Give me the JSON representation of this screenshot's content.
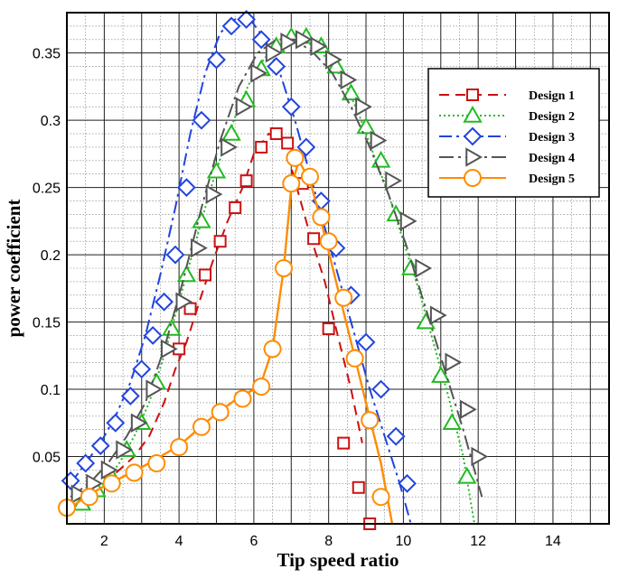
{
  "chart_data": {
    "type": "line",
    "title": "",
    "xlabel": "Tip speed ratio",
    "ylabel": "power coefficient",
    "xlim": [
      1,
      15.5
    ],
    "ylim": [
      0,
      0.38
    ],
    "grid": true,
    "legend_position": "top-right",
    "x_ticks": [
      2,
      4,
      6,
      8,
      10,
      12,
      14
    ],
    "y_ticks": [
      0.05,
      0.1,
      0.15,
      0.2,
      0.25,
      0.3,
      0.35
    ],
    "x_tick_labels": [
      "2",
      "4",
      "6",
      "8",
      "10",
      "12",
      "14"
    ],
    "y_tick_labels": [
      "0.05",
      "0.1",
      "0.15",
      "0.2",
      "0.25",
      "0.3",
      "0.35"
    ],
    "series": [
      {
        "name": "Design 1",
        "color": "#cc1111",
        "dash": "11,7",
        "marker": "square",
        "x": [
          1.2,
          1.6,
          2.0,
          2.4,
          2.8,
          3.2,
          3.6,
          3.9,
          4.2,
          4.6,
          4.9,
          5.3,
          5.7,
          6.0,
          6.4,
          6.8,
          7.1,
          7.5,
          7.9,
          8.2,
          8.6,
          8.9
        ],
        "y": [
          0.02,
          0.025,
          0.03,
          0.04,
          0.05,
          0.065,
          0.09,
          0.115,
          0.135,
          0.17,
          0.195,
          0.225,
          0.25,
          0.275,
          0.29,
          0.285,
          0.255,
          0.215,
          0.18,
          0.145,
          0.1,
          0.06
        ],
        "markers_x": [
          4.0,
          4.3,
          4.7,
          5.1,
          5.5,
          5.8,
          6.2,
          6.6,
          6.9,
          7.3,
          7.6,
          8.0,
          8.4,
          8.8,
          9.1
        ],
        "markers_y": [
          0.13,
          0.16,
          0.185,
          0.21,
          0.235,
          0.255,
          0.28,
          0.29,
          0.283,
          0.253,
          0.212,
          0.145,
          0.06,
          0.027,
          0.0
        ]
      },
      {
        "name": "Design 2",
        "color": "#22bb22",
        "dash": "2,3",
        "marker": "triangle",
        "x": [
          1.1,
          1.6,
          2.0,
          2.4,
          2.8,
          3.2,
          3.6,
          4.0,
          4.4,
          4.8,
          5.2,
          5.6,
          6.0,
          6.4,
          6.8,
          7.2,
          7.6,
          8.0,
          8.4,
          8.8,
          9.2,
          9.6,
          10.0,
          10.4,
          10.8,
          11.2,
          11.6,
          11.9
        ],
        "y": [
          0.01,
          0.02,
          0.03,
          0.045,
          0.065,
          0.09,
          0.125,
          0.165,
          0.205,
          0.245,
          0.28,
          0.31,
          0.335,
          0.35,
          0.36,
          0.362,
          0.355,
          0.345,
          0.33,
          0.305,
          0.275,
          0.245,
          0.21,
          0.175,
          0.135,
          0.095,
          0.05,
          0.0
        ],
        "markers_x": [
          1.4,
          1.8,
          2.2,
          2.6,
          3.0,
          3.4,
          3.8,
          4.2,
          4.6,
          5.0,
          5.4,
          5.8,
          6.2,
          6.6,
          7.0,
          7.4,
          7.8,
          8.2,
          8.6,
          9.0,
          9.4,
          9.8,
          10.2,
          10.6,
          11.0,
          11.3,
          11.7
        ],
        "markers_y": [
          0.015,
          0.025,
          0.035,
          0.055,
          0.075,
          0.105,
          0.145,
          0.185,
          0.225,
          0.262,
          0.29,
          0.315,
          0.338,
          0.355,
          0.362,
          0.362,
          0.355,
          0.34,
          0.32,
          0.295,
          0.27,
          0.23,
          0.19,
          0.15,
          0.11,
          0.075,
          0.035
        ]
      },
      {
        "name": "Design 3",
        "color": "#2244dd",
        "dash": "14,5,3,5",
        "marker": "diamond",
        "x": [
          1.1,
          1.5,
          1.9,
          2.3,
          2.7,
          3.1,
          3.5,
          3.9,
          4.3,
          4.7,
          5.1,
          5.5,
          5.9,
          6.3,
          6.7,
          7.1,
          7.5,
          7.9,
          8.3,
          8.7,
          9.1,
          9.5,
          9.9,
          10.2
        ],
        "y": [
          0.03,
          0.045,
          0.06,
          0.08,
          0.105,
          0.14,
          0.185,
          0.235,
          0.29,
          0.335,
          0.365,
          0.375,
          0.375,
          0.36,
          0.335,
          0.3,
          0.26,
          0.22,
          0.18,
          0.14,
          0.1,
          0.065,
          0.03,
          0.0
        ],
        "markers_x": [
          1.1,
          1.5,
          1.9,
          2.3,
          2.7,
          3.0,
          3.3,
          3.6,
          3.9,
          4.2,
          4.6,
          5.0,
          5.4,
          5.8,
          6.2,
          6.6,
          7.0,
          7.4,
          7.8,
          8.2,
          8.6,
          9.0,
          9.4,
          9.8,
          10.1
        ],
        "markers_y": [
          0.032,
          0.045,
          0.058,
          0.075,
          0.095,
          0.115,
          0.14,
          0.165,
          0.2,
          0.25,
          0.3,
          0.345,
          0.37,
          0.375,
          0.36,
          0.34,
          0.31,
          0.28,
          0.24,
          0.205,
          0.17,
          0.135,
          0.1,
          0.065,
          0.03
        ]
      },
      {
        "name": "Design 4",
        "color": "#555555",
        "dash": "16,5,3,5",
        "marker": "triangle-right",
        "x": [
          1.1,
          1.6,
          2.1,
          2.6,
          3.1,
          3.6,
          4.1,
          4.6,
          5.1,
          5.6,
          6.1,
          6.6,
          7.1,
          7.6,
          8.1,
          8.6,
          9.1,
          9.6,
          10.1,
          10.6,
          11.1,
          11.6,
          12.1
        ],
        "y": [
          0.02,
          0.03,
          0.045,
          0.065,
          0.09,
          0.13,
          0.18,
          0.235,
          0.285,
          0.325,
          0.35,
          0.36,
          0.36,
          0.35,
          0.335,
          0.31,
          0.28,
          0.245,
          0.205,
          0.16,
          0.115,
          0.07,
          0.02
        ],
        "markers_x": [
          1.3,
          1.7,
          2.1,
          2.5,
          2.9,
          3.3,
          3.7,
          4.1,
          4.5,
          4.9,
          5.3,
          5.7,
          6.1,
          6.5,
          6.9,
          7.3,
          7.7,
          8.1,
          8.5,
          8.9,
          9.3,
          9.7,
          10.1,
          10.5,
          10.9,
          11.3,
          11.7,
          12.0
        ],
        "markers_y": [
          0.022,
          0.03,
          0.04,
          0.055,
          0.075,
          0.1,
          0.13,
          0.165,
          0.205,
          0.245,
          0.28,
          0.31,
          0.335,
          0.35,
          0.358,
          0.36,
          0.355,
          0.345,
          0.33,
          0.31,
          0.285,
          0.255,
          0.225,
          0.19,
          0.155,
          0.12,
          0.085,
          0.05
        ]
      },
      {
        "name": "Design 5",
        "color": "#ff8c00",
        "dash": "",
        "marker": "circle",
        "x": [
          1.0,
          1.5,
          2.0,
          2.5,
          3.0,
          3.5,
          4.0,
          4.5,
          5.0,
          5.5,
          6.0,
          6.2,
          6.5,
          6.8,
          7.0,
          7.2,
          7.5,
          7.8,
          8.2,
          8.6,
          9.0,
          9.4,
          9.7
        ],
        "y": [
          0.01,
          0.02,
          0.028,
          0.035,
          0.042,
          0.05,
          0.058,
          0.07,
          0.082,
          0.092,
          0.1,
          0.105,
          0.13,
          0.19,
          0.25,
          0.27,
          0.255,
          0.225,
          0.18,
          0.135,
          0.09,
          0.045,
          0.0
        ],
        "markers_x": [
          1.0,
          1.6,
          2.2,
          2.8,
          3.4,
          4.0,
          4.6,
          5.1,
          5.7,
          6.2,
          6.5,
          6.8,
          7.0,
          7.1,
          7.5,
          7.8,
          8.0,
          8.4,
          8.7,
          9.1,
          9.4
        ],
        "markers_y": [
          0.012,
          0.02,
          0.03,
          0.038,
          0.045,
          0.057,
          0.072,
          0.083,
          0.093,
          0.102,
          0.13,
          0.19,
          0.253,
          0.272,
          0.258,
          0.228,
          0.21,
          0.168,
          0.123,
          0.077,
          0.02
        ]
      }
    ]
  }
}
